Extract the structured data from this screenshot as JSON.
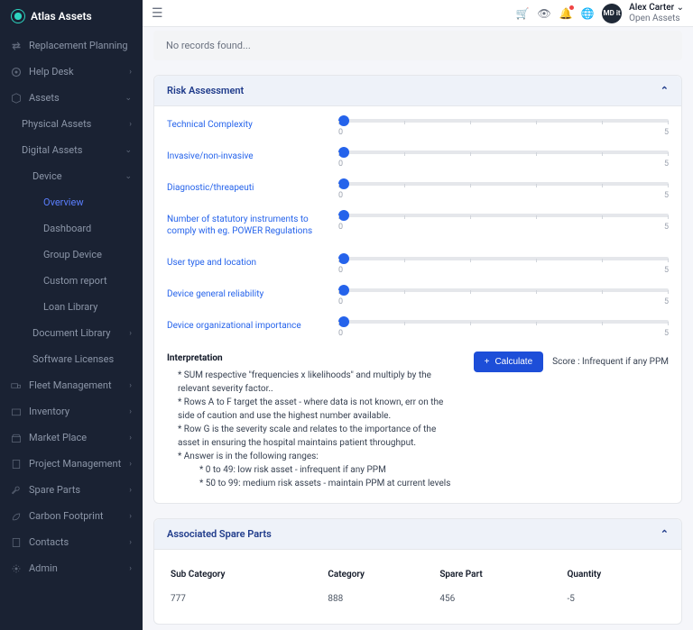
{
  "brand": "Atlas Assets",
  "user": {
    "name": "Alex Carter",
    "org": "Open Assets",
    "avatar": "MD it"
  },
  "nav": {
    "replacement": "Replacement Planning",
    "helpdesk": "Help Desk",
    "assets": "Assets",
    "physical": "Physical Assets",
    "digital": "Digital Assets",
    "device": "Device",
    "overview": "Overview",
    "dashboard": "Dashboard",
    "group_device": "Group Device",
    "custom_report": "Custom report",
    "loan_library": "Loan Library",
    "document_library": "Document Library",
    "software_licenses": "Software Licenses",
    "fleet": "Fleet Management",
    "inventory": "Inventory",
    "market": "Market Place",
    "project": "Project Management",
    "spare": "Spare Parts",
    "carbon": "Carbon Footprint",
    "contacts": "Contacts",
    "admin": "Admin"
  },
  "no_records": "No records found...",
  "risk": {
    "header": "Risk Assessment",
    "min_label": "0",
    "max_label": "5",
    "sliders": [
      {
        "label": "Technical Complexity",
        "value": 0
      },
      {
        "label": "Invasive/non-invasive",
        "value": 0
      },
      {
        "label": "Diagnostic/threapeuti",
        "value": 0
      },
      {
        "label": "Number of statutory instruments to comply with eg. POWER Regulations",
        "value": 0
      },
      {
        "label": "User type and location",
        "value": 0
      },
      {
        "label": "Device general reliability",
        "value": 0
      },
      {
        "label": "Device organizational importance",
        "value": 0
      }
    ],
    "interpretation_heading": "Interpretation",
    "interpretation": [
      "* SUM respective \"frequencies x likelihoods\" and multiply by the relevant severity factor..",
      "* Rows A to F target the asset - where data is not known, err on the side of caution and use the highest number available.",
      "* Row G is the severity scale and relates to the importance of the asset in ensuring the hospital maintains patient throughput.",
      "* Answer is in the following ranges:"
    ],
    "interpretation_ranges": [
      "* 0 to 49: low risk asset - infrequent if any PPM",
      "* 50 to 99: medium risk assets - maintain PPM at current levels"
    ],
    "calculate": "Calculate",
    "score_label": "Score : Infrequent if any PPM"
  },
  "spare_parts": {
    "header": "Associated Spare Parts",
    "columns": [
      "Sub Category",
      "Category",
      "Spare Part",
      "Quantity"
    ],
    "row": [
      "777",
      "888",
      "456",
      "-5"
    ]
  }
}
